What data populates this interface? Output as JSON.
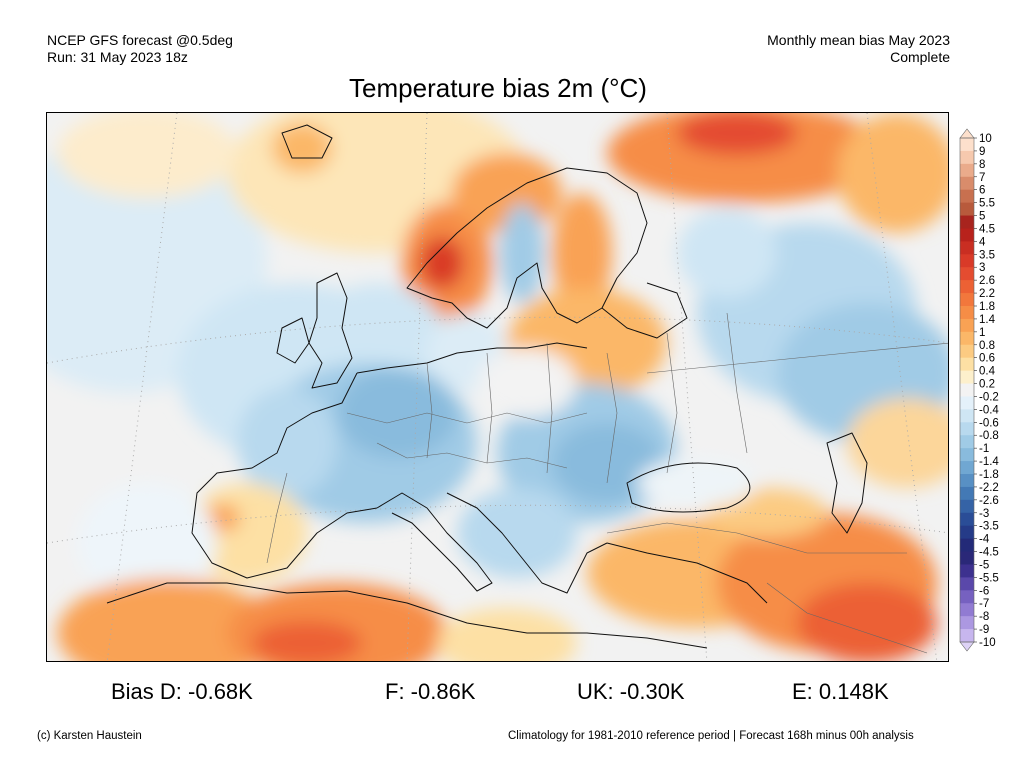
{
  "header": {
    "left_line1": "NCEP GFS forecast @0.5deg",
    "left_line2": "Run: 31 May 2023 18z",
    "right_line1": "Monthly mean bias May 2023",
    "right_line2": "Complete"
  },
  "title": "Temperature bias 2m (°C)",
  "colorbar": {
    "labels": [
      "10",
      "9",
      "8",
      "7",
      "6",
      "5.5",
      "5",
      "4.5",
      "4",
      "3.5",
      "3",
      "2.6",
      "2.2",
      "1.8",
      "1.4",
      "1",
      "0.8",
      "0.6",
      "0.4",
      "0.2",
      "-0.2",
      "-0.4",
      "-0.6",
      "-0.8",
      "-1",
      "-1.4",
      "-1.8",
      "-2.2",
      "-2.6",
      "-3",
      "-3.5",
      "-4",
      "-4.5",
      "-5",
      "-5.5",
      "-6",
      "-7",
      "-8",
      "-9",
      "-10"
    ],
    "colors": [
      "#fde0cc",
      "#f6c9ae",
      "#eaab8b",
      "#d98c6b",
      "#c8704f",
      "#b85a3c",
      "#a8241e",
      "#b8221c",
      "#c92e22",
      "#d93a28",
      "#e44c30",
      "#ec6134",
      "#f2773c",
      "#f68d46",
      "#f9a254",
      "#fbb768",
      "#fccb82",
      "#fde0a4",
      "#fdf0cc",
      "#f3f3f3",
      "#e4f1fa",
      "#cfe6f4",
      "#b8d9ee",
      "#a0cbe6",
      "#89bbdd",
      "#70a7d2",
      "#5890c4",
      "#4379b5",
      "#3563a6",
      "#2a4d97",
      "#253b88",
      "#232a78",
      "#2a2878",
      "#3d318f",
      "#5a48aa",
      "#7661c0",
      "#917bd2",
      "#ac98e1",
      "#c7b6ee",
      "#ddd2f6"
    ]
  },
  "stats": {
    "d": "Bias D: -0.68K",
    "f": "F: -0.86K",
    "uk": "UK: -0.30K",
    "e": "E: 0.148K"
  },
  "footer": {
    "left": "(c) Karsten Haustein",
    "right": "Climatology for 1981-2010 reference period | Forecast 168h minus 00h analysis"
  }
}
